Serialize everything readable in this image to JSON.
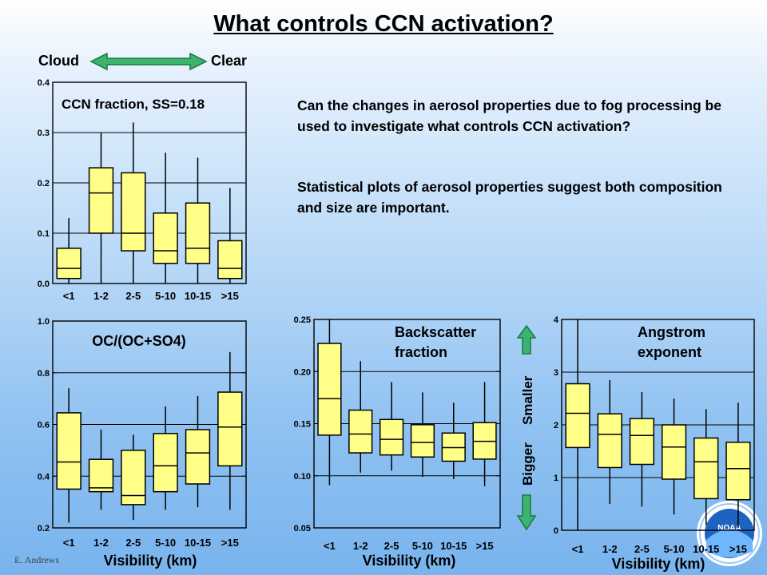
{
  "title": "What controls CCN activation?",
  "cloud_label": "Cloud",
  "clear_label": "Clear",
  "question": "Can the changes in aerosol properties due to fog processing be used to investigate what controls CCN activation?",
  "statement": "Statistical plots of aerosol properties suggest both composition and size are important.",
  "bigger_label": "Bigger",
  "smaller_label": "Smaller",
  "credit": "E. Andrews",
  "logo_text": "NOAA",
  "colors": {
    "box_fill": "#ffff88",
    "arrow_green": "#3cb371",
    "arrow_edge": "#1a7a3e"
  },
  "chart_data": [
    {
      "type": "boxplot",
      "title": "CCN fraction, SS=0.18",
      "xlabel": "",
      "categories": [
        "<1",
        "1-2",
        "2-5",
        "5-10",
        "10-15",
        ">15"
      ],
      "ylim": [
        0,
        0.4
      ],
      "yticks": [
        "0.0",
        "0.1",
        "0.2",
        "0.3",
        "0.4"
      ],
      "grid": [
        0.1,
        0.2,
        0.3
      ],
      "boxes": [
        {
          "min": 0.0,
          "q1": 0.01,
          "median": 0.03,
          "q3": 0.07,
          "max": 0.13
        },
        {
          "min": 0.0,
          "q1": 0.1,
          "median": 0.18,
          "q3": 0.23,
          "max": 0.3
        },
        {
          "min": 0.0,
          "q1": 0.065,
          "median": 0.1,
          "q3": 0.22,
          "max": 0.32
        },
        {
          "min": 0.0,
          "q1": 0.04,
          "median": 0.065,
          "q3": 0.14,
          "max": 0.26
        },
        {
          "min": 0.0,
          "q1": 0.04,
          "median": 0.07,
          "q3": 0.16,
          "max": 0.25
        },
        {
          "min": 0.0,
          "q1": 0.01,
          "median": 0.03,
          "q3": 0.085,
          "max": 0.19
        }
      ]
    },
    {
      "type": "boxplot",
      "title": "OC/(OC+SO4)",
      "xlabel": "Visibility  (km)",
      "categories": [
        "<1",
        "1-2",
        "2-5",
        "5-10",
        "10-15",
        ">15"
      ],
      "ylim": [
        0.2,
        1.0
      ],
      "yticks": [
        "0.2",
        "0.4",
        "0.6",
        "0.8",
        "1.0"
      ],
      "grid": [
        0.4,
        0.6,
        0.8
      ],
      "boxes": [
        {
          "min": 0.22,
          "q1": 0.35,
          "median": 0.455,
          "q3": 0.645,
          "max": 0.74
        },
        {
          "min": 0.27,
          "q1": 0.34,
          "median": 0.355,
          "q3": 0.465,
          "max": 0.58
        },
        {
          "min": 0.23,
          "q1": 0.29,
          "median": 0.325,
          "q3": 0.5,
          "max": 0.56
        },
        {
          "min": 0.27,
          "q1": 0.34,
          "median": 0.44,
          "q3": 0.565,
          "max": 0.67
        },
        {
          "min": 0.28,
          "q1": 0.37,
          "median": 0.49,
          "q3": 0.58,
          "max": 0.71
        },
        {
          "min": 0.27,
          "q1": 0.44,
          "median": 0.59,
          "q3": 0.725,
          "max": 0.88
        }
      ]
    },
    {
      "type": "boxplot",
      "title": "Backscatter\nfraction",
      "xlabel": "Visibility  (km)",
      "categories": [
        "<1",
        "1-2",
        "2-5",
        "5-10",
        "10-15",
        ">15"
      ],
      "ylim": [
        0.05,
        0.25
      ],
      "yticks": [
        "0.05",
        "0.10",
        "0.15",
        "0.20",
        "0.25"
      ],
      "grid": [
        0.1,
        0.15,
        0.2
      ],
      "boxes": [
        {
          "min": 0.091,
          "q1": 0.139,
          "median": 0.174,
          "q3": 0.227,
          "max": 0.25
        },
        {
          "min": 0.103,
          "q1": 0.122,
          "median": 0.14,
          "q3": 0.163,
          "max": 0.21
        },
        {
          "min": 0.105,
          "q1": 0.12,
          "median": 0.135,
          "q3": 0.154,
          "max": 0.19
        },
        {
          "min": 0.099,
          "q1": 0.118,
          "median": 0.132,
          "q3": 0.149,
          "max": 0.18
        },
        {
          "min": 0.097,
          "q1": 0.114,
          "median": 0.127,
          "q3": 0.141,
          "max": 0.17
        },
        {
          "min": 0.09,
          "q1": 0.116,
          "median": 0.133,
          "q3": 0.151,
          "max": 0.19
        }
      ]
    },
    {
      "type": "boxplot",
      "title": "Angstrom\nexponent",
      "xlabel": "Visibility  (km)",
      "categories": [
        "<1",
        "1-2",
        "2-5",
        "5-10",
        "10-15",
        ">15"
      ],
      "ylim": [
        0,
        4
      ],
      "yticks": [
        "0",
        "1",
        "2",
        "3",
        "4"
      ],
      "grid": [
        1,
        2,
        3
      ],
      "boxes": [
        {
          "min": 0.0,
          "q1": 1.57,
          "median": 2.22,
          "q3": 2.78,
          "max": 4.0
        },
        {
          "min": 0.5,
          "q1": 1.19,
          "median": 1.82,
          "q3": 2.21,
          "max": 2.85
        },
        {
          "min": 0.45,
          "q1": 1.25,
          "median": 1.8,
          "q3": 2.12,
          "max": 2.62
        },
        {
          "min": 0.3,
          "q1": 0.97,
          "median": 1.58,
          "q3": 2.0,
          "max": 2.5
        },
        {
          "min": 0.1,
          "q1": 0.6,
          "median": 1.3,
          "q3": 1.75,
          "max": 2.3
        },
        {
          "min": 0.05,
          "q1": 0.58,
          "median": 1.17,
          "q3": 1.67,
          "max": 2.42
        }
      ]
    }
  ]
}
